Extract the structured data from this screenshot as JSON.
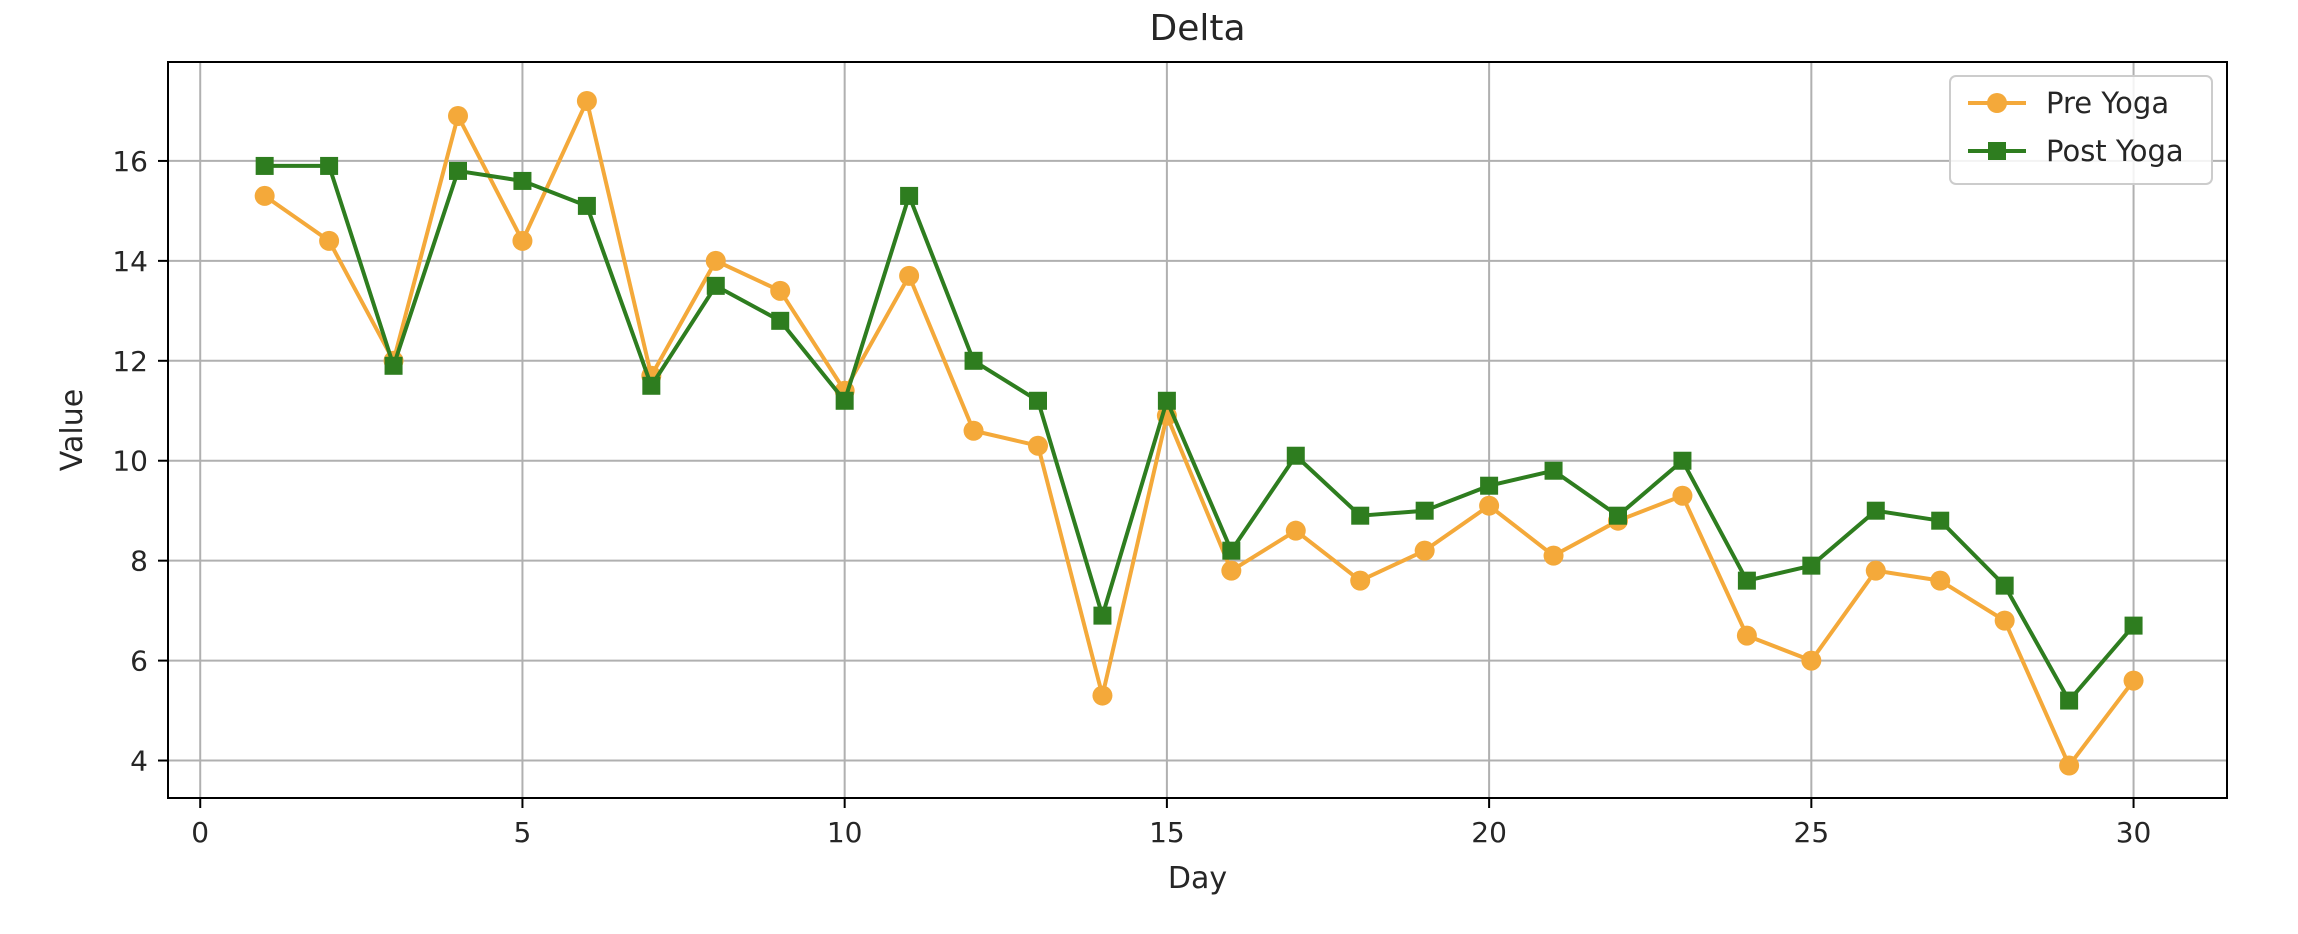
{
  "chart_data": {
    "type": "line",
    "title": "Delta",
    "xlabel": "Day",
    "ylabel": "Value",
    "xlim": [
      -0.5,
      31.45
    ],
    "ylim": [
      3.25,
      17.98
    ],
    "xticks": [
      0,
      5,
      10,
      15,
      20,
      25,
      30
    ],
    "yticks": [
      4,
      6,
      8,
      10,
      12,
      14,
      16
    ],
    "grid": true,
    "legend_position": "top-right",
    "x": [
      1,
      2,
      3,
      4,
      5,
      6,
      7,
      8,
      9,
      10,
      11,
      12,
      13,
      14,
      15,
      16,
      17,
      18,
      19,
      20,
      21,
      22,
      23,
      24,
      25,
      26,
      27,
      28,
      29,
      30
    ],
    "series": [
      {
        "name": "Pre Yoga",
        "color": "#f4a93a",
        "marker": "circle",
        "values": [
          15.3,
          14.4,
          12.0,
          16.9,
          14.4,
          17.2,
          11.7,
          14.0,
          13.4,
          11.4,
          13.7,
          10.6,
          10.3,
          5.3,
          10.9,
          7.8,
          8.6,
          7.6,
          8.2,
          9.1,
          8.1,
          8.8,
          9.3,
          6.5,
          6.0,
          7.8,
          7.6,
          6.8,
          3.9,
          5.6
        ]
      },
      {
        "name": "Post Yoga",
        "color": "#2e7d1f",
        "marker": "square",
        "values": [
          15.9,
          15.9,
          11.9,
          15.8,
          15.6,
          15.1,
          11.5,
          13.5,
          12.8,
          11.2,
          15.3,
          12.0,
          11.2,
          6.9,
          11.2,
          8.2,
          10.1,
          8.9,
          9.0,
          9.5,
          9.8,
          8.9,
          10.0,
          7.6,
          7.9,
          9.0,
          8.8,
          7.5,
          5.2,
          6.7
        ]
      }
    ]
  }
}
